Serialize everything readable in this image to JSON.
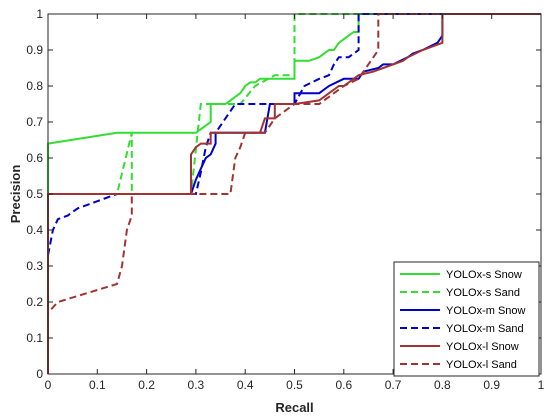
{
  "chart_data": {
    "type": "line",
    "title": "",
    "xlabel": "Recall",
    "ylabel": "Precision",
    "xlim": [
      0,
      1
    ],
    "ylim": [
      0,
      1
    ],
    "xticks": [
      0,
      0.1,
      0.2,
      0.3,
      0.4,
      0.5,
      0.6,
      0.7,
      0.8,
      0.9,
      1
    ],
    "yticks": [
      0,
      0.1,
      0.2,
      0.3,
      0.4,
      0.5,
      0.6,
      0.7,
      0.8,
      0.9,
      1
    ],
    "xtick_labels": [
      "0",
      "0.1",
      "0.2",
      "0.3",
      "0.4",
      "0.5",
      "0.6",
      "0.7",
      "0.8",
      "0.9",
      "1"
    ],
    "ytick_labels": [
      "0",
      "0.1",
      "0.2",
      "0.3",
      "0.4",
      "0.5",
      "0.6",
      "0.7",
      "0.8",
      "0.9",
      "1"
    ],
    "grid": false,
    "legend_position": "bottom-right",
    "series": [
      {
        "name": "YOLOx-s Snow",
        "color": "#33dd33",
        "dash": "solid",
        "x": [
          0,
          0,
          0.14,
          0.3,
          0.33,
          0.33,
          0.36,
          0.37,
          0.38,
          0.39,
          0.4,
          0.41,
          0.42,
          0.43,
          0.44,
          0.45,
          0.5,
          0.5,
          0.53,
          0.55,
          0.56,
          0.57,
          0.58,
          0.59,
          0.6,
          0.61,
          0.62,
          0.63,
          0.63,
          1
        ],
        "y": [
          0,
          0.64,
          0.67,
          0.67,
          0.7,
          0.75,
          0.75,
          0.76,
          0.77,
          0.78,
          0.8,
          0.81,
          0.81,
          0.82,
          0.82,
          0.82,
          0.82,
          0.87,
          0.87,
          0.88,
          0.89,
          0.9,
          0.9,
          0.92,
          0.93,
          0.94,
          0.95,
          0.95,
          1,
          1
        ]
      },
      {
        "name": "YOLOx-s Sand",
        "color": "#33dd33",
        "dash": "dashed",
        "x": [
          0,
          0,
          0.14,
          0.17,
          0.17,
          0.29,
          0.31,
          0.33,
          0.39,
          0.42,
          0.46,
          0.5,
          0.5,
          0.5,
          1
        ],
        "y": [
          0,
          0.5,
          0.5,
          0.67,
          0.5,
          0.5,
          0.75,
          0.75,
          0.75,
          0.8,
          0.83,
          0.83,
          0.86,
          1,
          1
        ]
      },
      {
        "name": "YOLOx-m Snow",
        "color": "#0000cc",
        "dash": "solid",
        "x": [
          0,
          0,
          0.29,
          0.3,
          0.31,
          0.32,
          0.33,
          0.34,
          0.34,
          0.44,
          0.45,
          0.5,
          0.5,
          0.55,
          0.56,
          0.57,
          0.6,
          0.63,
          0.64,
          0.67,
          0.68,
          0.7,
          0.73,
          0.74,
          0.76,
          0.79,
          0.8,
          0.8,
          1
        ],
        "y": [
          0.4,
          0.5,
          0.5,
          0.54,
          0.57,
          0.6,
          0.61,
          0.64,
          0.67,
          0.67,
          0.75,
          0.75,
          0.78,
          0.78,
          0.79,
          0.8,
          0.82,
          0.82,
          0.84,
          0.85,
          0.86,
          0.86,
          0.88,
          0.89,
          0.9,
          0.92,
          0.94,
          1,
          1
        ]
      },
      {
        "name": "YOLOx-m Sand",
        "color": "#0000cc",
        "dash": "dashed",
        "x": [
          0,
          0.01,
          0.02,
          0.04,
          0.06,
          0.1,
          0.14,
          0.16,
          0.3,
          0.31,
          0.32,
          0.33,
          0.34,
          0.38,
          0.4,
          0.45,
          0.5,
          0.52,
          0.55,
          0.57,
          0.58,
          0.59,
          0.61,
          0.62,
          0.63,
          0.63,
          1
        ],
        "y": [
          0.33,
          0.4,
          0.43,
          0.44,
          0.46,
          0.48,
          0.5,
          0.5,
          0.5,
          0.56,
          0.63,
          0.67,
          0.67,
          0.75,
          0.75,
          0.75,
          0.75,
          0.8,
          0.82,
          0.83,
          0.86,
          0.88,
          0.88,
          0.89,
          0.9,
          1,
          1
        ]
      },
      {
        "name": "YOLOx-l Snow",
        "color": "#a33333",
        "dash": "solid",
        "x": [
          0,
          0,
          0.29,
          0.29,
          0.3,
          0.31,
          0.32,
          0.33,
          0.33,
          0.43,
          0.44,
          0.46,
          0.46,
          0.5,
          0.5,
          0.55,
          0.56,
          0.57,
          0.59,
          0.6,
          0.61,
          0.63,
          0.66,
          0.68,
          0.7,
          0.72,
          0.73,
          0.76,
          0.8,
          0.8,
          1
        ],
        "y": [
          0,
          0.5,
          0.5,
          0.61,
          0.63,
          0.64,
          0.64,
          0.64,
          0.67,
          0.67,
          0.71,
          0.71,
          0.75,
          0.75,
          0.75,
          0.76,
          0.77,
          0.78,
          0.8,
          0.8,
          0.81,
          0.83,
          0.84,
          0.85,
          0.86,
          0.87,
          0.88,
          0.9,
          0.92,
          1,
          1
        ]
      },
      {
        "name": "YOLOx-l Sand",
        "color": "#a33333",
        "dash": "dashed",
        "x": [
          0,
          0,
          0.02,
          0.14,
          0.15,
          0.16,
          0.17,
          0.17,
          0.3,
          0.37,
          0.38,
          0.39,
          0.4,
          0.44,
          0.46,
          0.5,
          0.55,
          0.6,
          0.63,
          0.65,
          0.66,
          0.67,
          0.67,
          1
        ],
        "y": [
          0,
          0.17,
          0.2,
          0.25,
          0.3,
          0.4,
          0.44,
          0.5,
          0.5,
          0.5,
          0.6,
          0.63,
          0.67,
          0.67,
          0.71,
          0.75,
          0.75,
          0.8,
          0.82,
          0.86,
          0.88,
          0.9,
          1,
          1
        ]
      }
    ]
  }
}
